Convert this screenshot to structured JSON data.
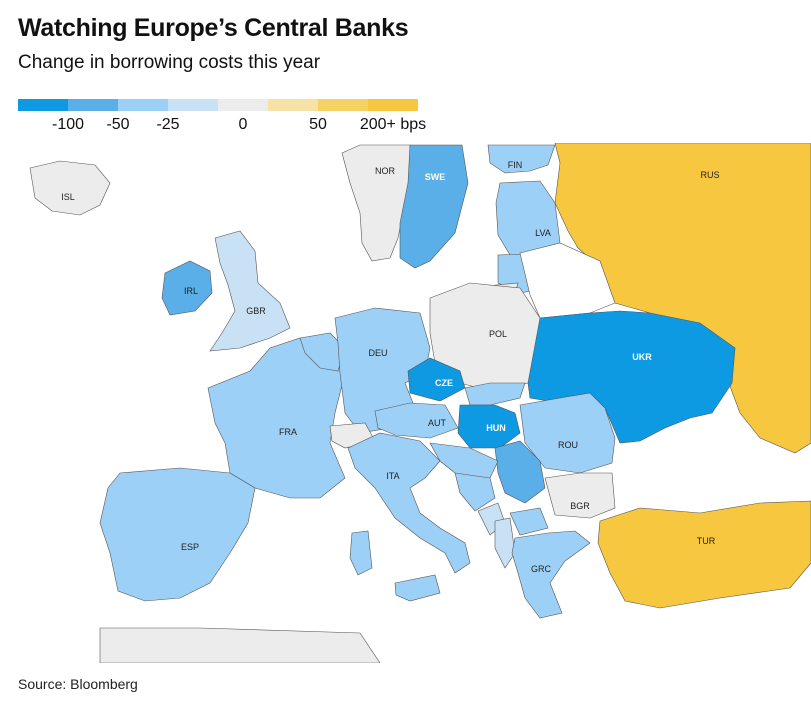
{
  "title": "Watching Europe’s Central Banks",
  "subtitle": "Change in borrowing costs this year",
  "source": "Source: Bloomberg",
  "legend": {
    "colors": [
      "#0d9ae3",
      "#5aafe9",
      "#9dd0f7",
      "#c9e1f5",
      "#ececec",
      "#f6e2a6",
      "#f5d263",
      "#f7c73f"
    ],
    "labels": [
      {
        "text": "-100",
        "at": 1
      },
      {
        "text": "-50",
        "at": 2
      },
      {
        "text": "-25",
        "at": 3
      },
      {
        "text": "0",
        "at": 4.5
      },
      {
        "text": "50",
        "at": 6
      },
      {
        "text": "200+ bps",
        "at": 7.5
      }
    ]
  },
  "countries": [
    {
      "code": "ISL",
      "color": "#ececec"
    },
    {
      "code": "NOR",
      "color": "#ececec"
    },
    {
      "code": "SWE",
      "color": "#5aafe9"
    },
    {
      "code": "FIN",
      "color": "#9dd0f7"
    },
    {
      "code": "RUS",
      "color": "#f7c73f"
    },
    {
      "code": "LVA",
      "color": "#9dd0f7"
    },
    {
      "code": "IRL",
      "color": "#5aafe9"
    },
    {
      "code": "GBR",
      "color": "#c9e1f5"
    },
    {
      "code": "POL",
      "color": "#ececec"
    },
    {
      "code": "DEU",
      "color": "#9dd0f7"
    },
    {
      "code": "CZE",
      "color": "#0d9ae3"
    },
    {
      "code": "UKR",
      "color": "#0d9ae3"
    },
    {
      "code": "FRA",
      "color": "#9dd0f7"
    },
    {
      "code": "AUT",
      "color": "#9dd0f7"
    },
    {
      "code": "HUN",
      "color": "#0d9ae3"
    },
    {
      "code": "ROU",
      "color": "#9dd0f7"
    },
    {
      "code": "ITA",
      "color": "#9dd0f7"
    },
    {
      "code": "BGR",
      "color": "#ececec"
    },
    {
      "code": "ESP",
      "color": "#9dd0f7"
    },
    {
      "code": "TUR",
      "color": "#f7c73f"
    },
    {
      "code": "GRC",
      "color": "#9dd0f7"
    }
  ]
}
